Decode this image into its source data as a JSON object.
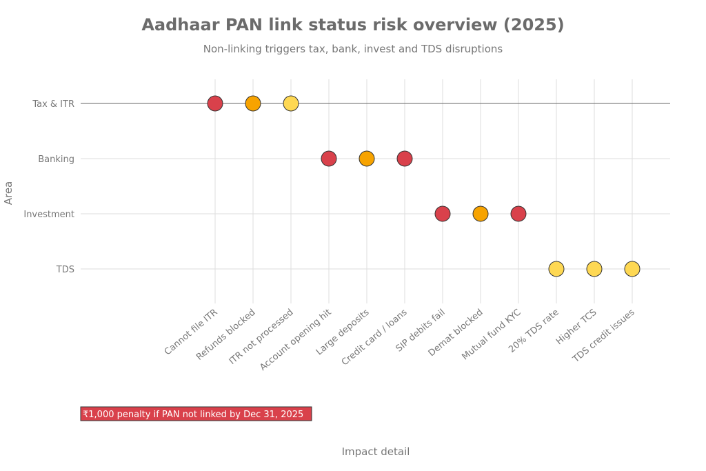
{
  "chart_data": {
    "type": "scatter",
    "title": "Aadhaar PAN link status risk overview (2025)",
    "subtitle": "Non-linking triggers tax, bank, invest and TDS disruptions",
    "xlabel": "Impact detail",
    "ylabel": "Area",
    "grid": true,
    "categories_y": [
      "Tax & ITR",
      "Banking",
      "Investment",
      "TDS"
    ],
    "categories_x": [
      "Cannot file ITR",
      "Refunds blocked",
      "ITR not processed",
      "Account opening hit",
      "Large deposits",
      "Credit card / loans",
      "SIP debits fail",
      "Demat blocked",
      "Mutual fund KYC",
      "20% TDS rate",
      "Higher TCS",
      "TDS credit issues"
    ],
    "severity_colors": {
      "high": "#d9414b",
      "medium": "#f7a300",
      "low": "#fed853"
    },
    "points": [
      {
        "x": "Cannot file ITR",
        "y": "Tax & ITR",
        "severity": "high"
      },
      {
        "x": "Refunds blocked",
        "y": "Tax & ITR",
        "severity": "medium"
      },
      {
        "x": "ITR not processed",
        "y": "Tax & ITR",
        "severity": "low"
      },
      {
        "x": "Account opening hit",
        "y": "Banking",
        "severity": "high"
      },
      {
        "x": "Large deposits",
        "y": "Banking",
        "severity": "medium"
      },
      {
        "x": "Credit card / loans",
        "y": "Banking",
        "severity": "high"
      },
      {
        "x": "SIP debits fail",
        "y": "Investment",
        "severity": "high"
      },
      {
        "x": "Demat blocked",
        "y": "Investment",
        "severity": "medium"
      },
      {
        "x": "Mutual fund KYC",
        "y": "Investment",
        "severity": "high"
      },
      {
        "x": "20% TDS rate",
        "y": "TDS",
        "severity": "low"
      },
      {
        "x": "Higher TCS",
        "y": "TDS",
        "severity": "low"
      },
      {
        "x": "TDS credit issues",
        "y": "TDS",
        "severity": "low"
      }
    ],
    "annotation": "₹1,000 penalty if PAN not linked by Dec 31, 2025"
  }
}
